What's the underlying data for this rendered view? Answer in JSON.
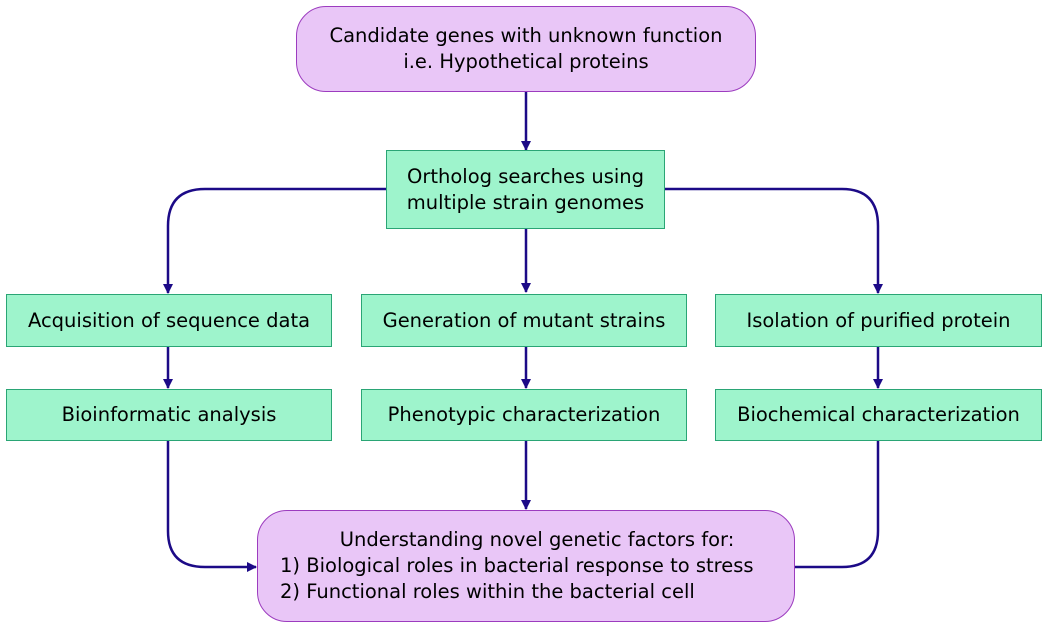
{
  "diagram": {
    "top": {
      "line1": "Candidate genes with unknown function",
      "line2": "i.e. Hypothetical proteins"
    },
    "ortholog": {
      "line1": "Ortholog searches using",
      "line2": "multiple strain genomes"
    },
    "columns": [
      {
        "step1": "Acquisition of sequence data",
        "step2": "Bioinformatic analysis"
      },
      {
        "step1": "Generation of mutant strains",
        "step2": "Phenotypic characterization"
      },
      {
        "step1": "Isolation of purified protein",
        "step2": "Biochemical characterization"
      }
    ],
    "bottom": {
      "line1": "Understanding novel genetic factors for:",
      "line2": "1) Biological roles in bacterial response to stress",
      "line3": "2) Functional roles within the bacterial cell"
    },
    "colors": {
      "process_fill": "#9ef4cc",
      "process_border": "#2aa575",
      "terminal_fill": "#e9c6f7",
      "terminal_border": "#9c3cbf",
      "arrow": "#1c0a87"
    }
  }
}
